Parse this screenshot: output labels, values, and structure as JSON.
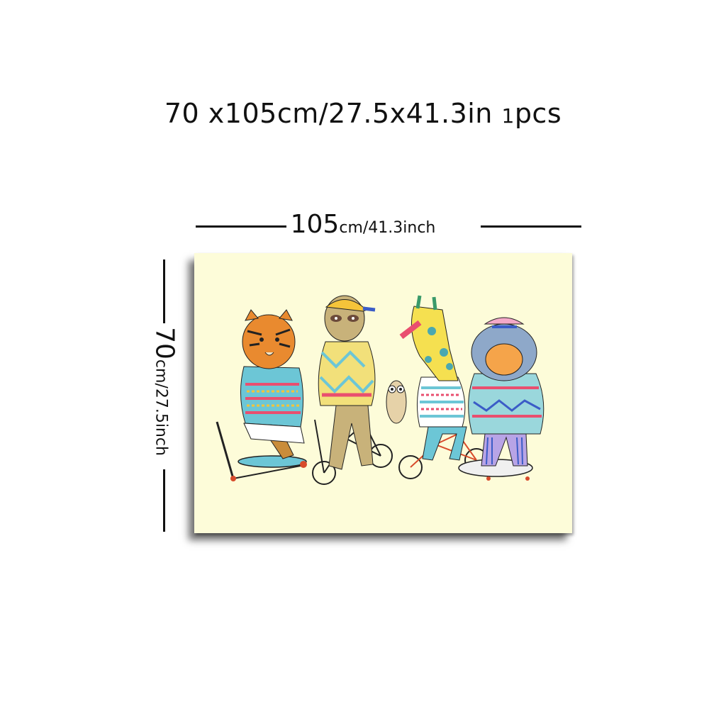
{
  "title": {
    "size": "70 x105cm/27.5x41.3in",
    "count_number": "1",
    "count_unit": "pcs"
  },
  "width_dim": {
    "value": "105",
    "unit": "cm/41.3inch"
  },
  "height_dim": {
    "value": "70",
    "unit": "cm/27.5inch"
  },
  "artwork": {
    "background_color": "#fdfcd9",
    "characters": [
      "tiger",
      "sloth",
      "owl",
      "giraffe",
      "bear"
    ],
    "vehicles": [
      "scooter",
      "bicycle",
      "bicycle",
      "skateboard"
    ]
  }
}
